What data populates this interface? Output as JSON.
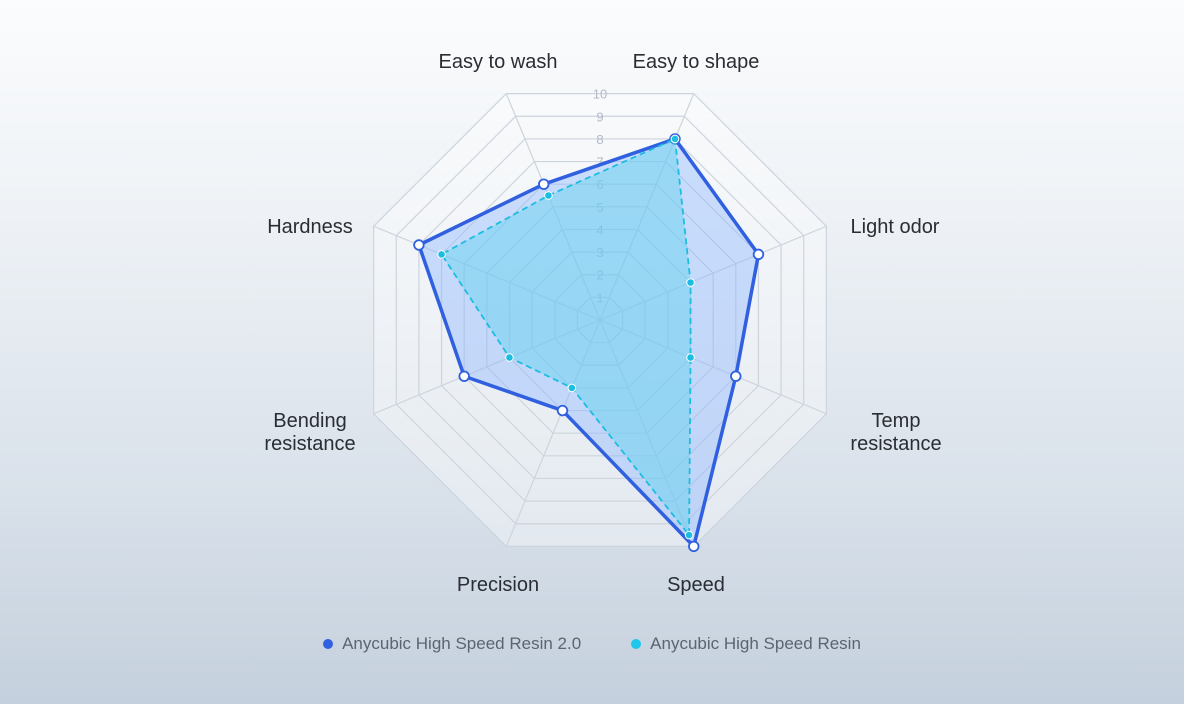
{
  "chart_data": {
    "type": "radar",
    "axes": [
      "Easy to shape",
      "Light odor",
      "Temp\nresistance",
      "Speed",
      "Precision",
      "Bending\nresistance",
      "Hardness",
      "Easy to wash"
    ],
    "range": [
      0,
      10
    ],
    "ticks": [
      "1",
      "2",
      "3",
      "4",
      "5",
      "6",
      "7",
      "8",
      "9",
      "10"
    ],
    "series": [
      {
        "name": "Anycubic High Speed Resin 2.0",
        "color": "#3060e0",
        "fill": "#8ab4ff",
        "style": "solid",
        "values": [
          8,
          7,
          6,
          10,
          4,
          6,
          8,
          6
        ]
      },
      {
        "name": "Anycubic High Speed Resin",
        "color": "#1bbde0",
        "fill": "#5fd3ee",
        "style": "dashed",
        "values": [
          8,
          4,
          4,
          9.5,
          3,
          4,
          7,
          5.5
        ]
      }
    ],
    "grid": true,
    "legend_position": "bottom-center"
  }
}
